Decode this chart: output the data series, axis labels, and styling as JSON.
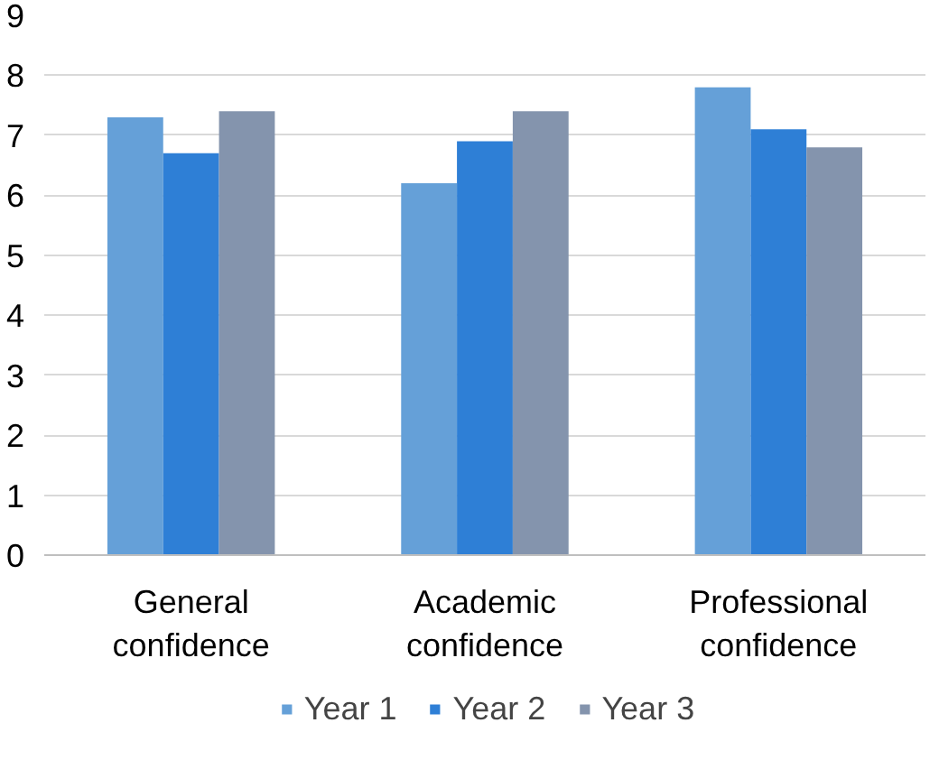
{
  "chart_data": {
    "type": "bar",
    "categories": [
      "General confidence",
      "Academic confidence",
      "Professional confidence"
    ],
    "series": [
      {
        "name": "Year 1",
        "color": "#65a0d8",
        "values": [
          7.3,
          6.2,
          7.8
        ]
      },
      {
        "name": "Year 2",
        "color": "#2e7fd6",
        "values": [
          6.7,
          6.9,
          7.1
        ]
      },
      {
        "name": "Year 3",
        "color": "#8494ad",
        "values": [
          7.4,
          7.4,
          6.8
        ]
      }
    ],
    "ylim": [
      0,
      9
    ],
    "yticks": [
      0,
      1,
      2,
      3,
      4,
      5,
      6,
      7,
      8,
      9
    ],
    "grid": "y",
    "legend": "bottom"
  }
}
